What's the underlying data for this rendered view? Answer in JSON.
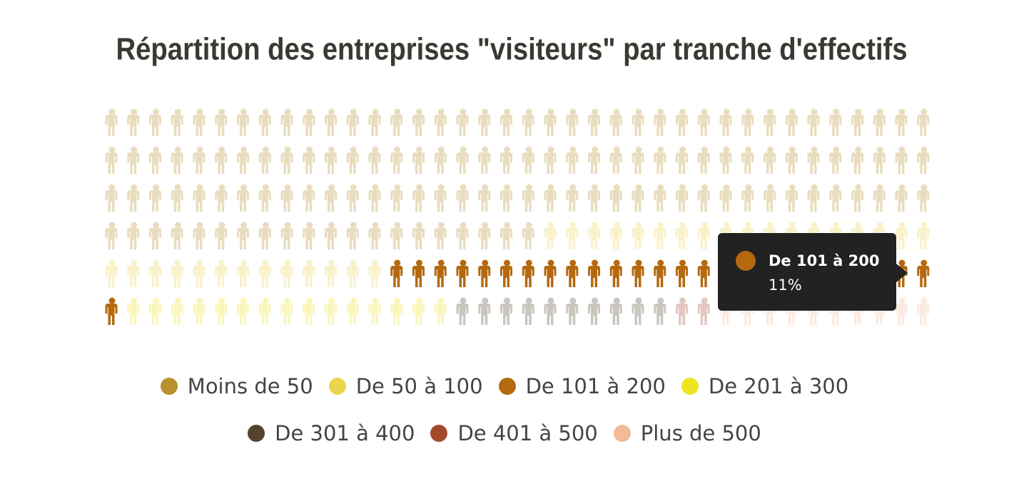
{
  "chart_data": {
    "type": "pictogram",
    "title": "Répartition des entreprises \"visiteurs\" par tranche d'effectifs",
    "columns": 38,
    "series": [
      {
        "name": "Moins de 50",
        "color": "#b8902e",
        "values": [
          134
        ]
      },
      {
        "name": "De 50 à 100",
        "color": "#ecd54e",
        "values": [
          31
        ]
      },
      {
        "name": "De 101 à 200",
        "color": "#b5690f",
        "values": [
          26
        ]
      },
      {
        "name": "De 201 à 300",
        "color": "#eee421",
        "values": [
          15
        ]
      },
      {
        "name": "De 301 à 400",
        "color": "#54442d",
        "values": [
          10
        ]
      },
      {
        "name": "De 401 à 500",
        "color": "#a34a2c",
        "values": [
          2
        ]
      },
      {
        "name": "Plus de 500",
        "color": "#f2bb98",
        "values": [
          10
        ]
      }
    ],
    "tooltip": {
      "label": "11%"
    }
  }
}
